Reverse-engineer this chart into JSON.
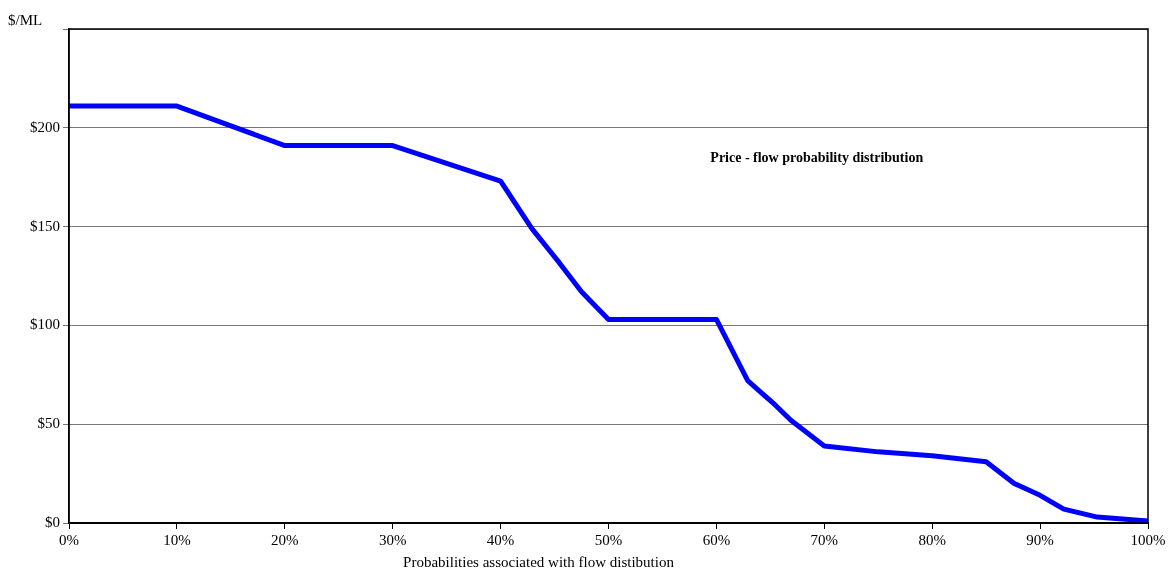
{
  "chart_data": {
    "type": "line",
    "title": "Price - flow probability distribution",
    "xlabel": "Probabilities associated with flow distibution",
    "ylabel": "$/ML",
    "x": [
      0,
      10,
      15,
      20,
      30,
      35,
      40,
      42.9,
      45.4,
      47.5,
      50,
      60,
      62.9,
      65.4,
      66.9,
      70,
      75,
      80,
      85,
      87.6,
      90,
      92.2,
      95.3,
      100
    ],
    "series": [
      {
        "color": "#0000ff",
        "values": [
          211,
          211,
          201,
          191,
          191,
          182,
          173,
          149,
          132,
          117,
          103,
          103,
          72,
          60,
          52,
          39,
          36,
          34,
          31,
          20,
          14,
          7,
          3,
          1
        ]
      }
    ],
    "xlim": [
      0,
      100
    ],
    "xticks": [
      {
        "value": 0,
        "label": "0%"
      },
      {
        "value": 10,
        "label": "10%"
      },
      {
        "value": 20,
        "label": "20%"
      },
      {
        "value": 30,
        "label": "30%"
      },
      {
        "value": 40,
        "label": "40%"
      },
      {
        "value": 50,
        "label": "50%"
      },
      {
        "value": 60,
        "label": "60%"
      },
      {
        "value": 70,
        "label": "70%"
      },
      {
        "value": 80,
        "label": "80%"
      },
      {
        "value": 90,
        "label": "90%"
      },
      {
        "value": 100,
        "label": "100%"
      }
    ],
    "ylim": [
      0,
      250
    ],
    "yticks": [
      {
        "value": 0,
        "label": "$0"
      },
      {
        "value": 50,
        "label": "$50"
      },
      {
        "value": 100,
        "label": "$100"
      },
      {
        "value": 150,
        "label": "$150"
      },
      {
        "value": 200,
        "label": "$200"
      },
      {
        "value": 250,
        "label": null
      }
    ],
    "grid": "y",
    "legend": false,
    "marker": "none",
    "line_style": "solid"
  }
}
